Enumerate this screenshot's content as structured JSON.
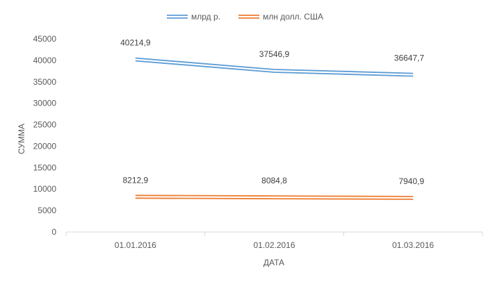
{
  "chart_data": {
    "type": "line",
    "categories": [
      "01.01.2016",
      "01.02.2016",
      "01.03.2016"
    ],
    "series": [
      {
        "name": "млрд р.",
        "values": [
          40214.9,
          37546.9,
          36647.7
        ],
        "labels": [
          "40214,9",
          "37546,9",
          "36647,7"
        ],
        "color": "#5B9BD5"
      },
      {
        "name": "млн долл. США",
        "values": [
          8212.9,
          8084.8,
          7940.9
        ],
        "labels": [
          "8212,9",
          "8084,8",
          "7940,9"
        ],
        "color": "#ED7D31"
      }
    ],
    "xlabel": "ДАТА",
    "ylabel": "СУММА",
    "ylim": [
      0,
      45000
    ],
    "yticks": [
      "0",
      "5000",
      "10000",
      "15000",
      "20000",
      "25000",
      "30000",
      "35000",
      "40000",
      "45000"
    ],
    "grid": false,
    "legend": "top-center"
  }
}
